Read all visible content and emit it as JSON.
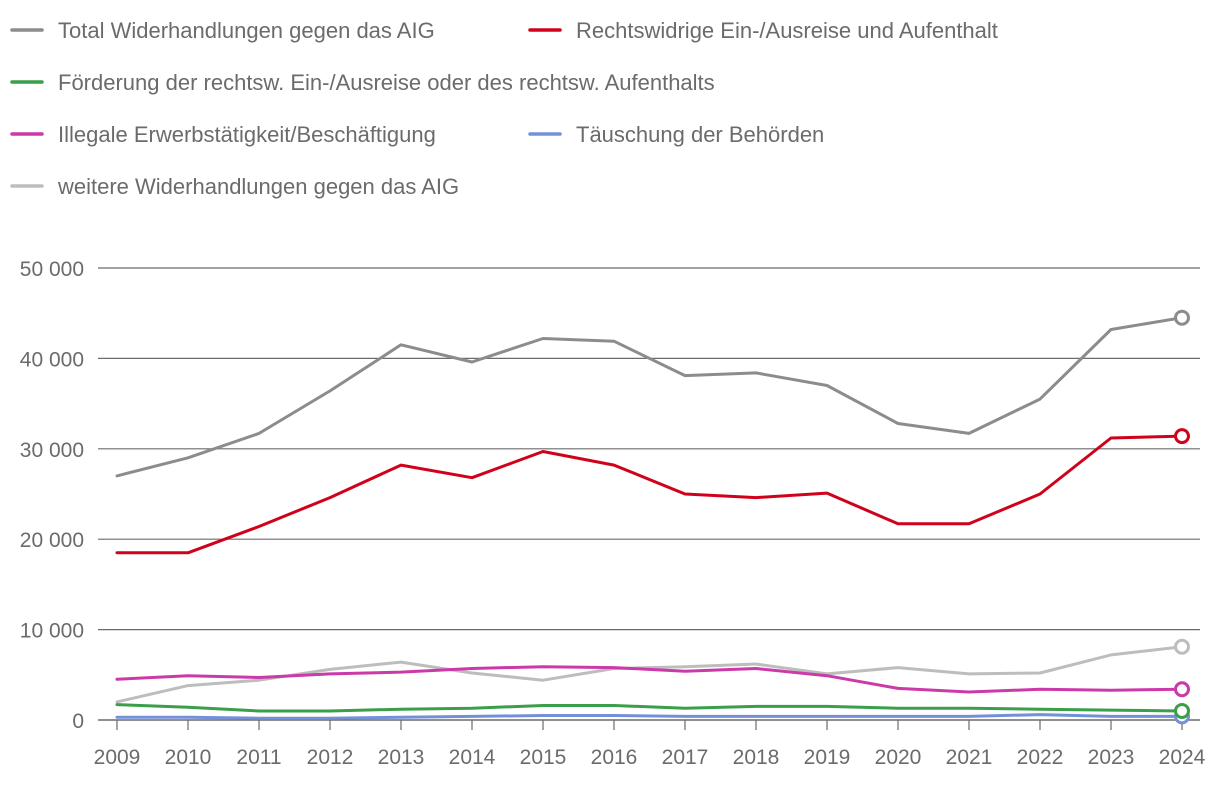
{
  "chart_data": {
    "type": "line",
    "title": "",
    "xlabel": "",
    "ylabel": "",
    "x": [
      "2009",
      "2010",
      "2011",
      "2012",
      "2013",
      "2014",
      "2015",
      "2016",
      "2017",
      "2018",
      "2019",
      "2020",
      "2021",
      "2022",
      "2023",
      "2024"
    ],
    "ylim": [
      0,
      50000
    ],
    "yticks": [
      0,
      10000,
      20000,
      30000,
      40000,
      50000
    ],
    "ytick_labels": [
      "0",
      "10 000",
      "20 000",
      "30 000",
      "40 000",
      "50 000"
    ],
    "grid": true,
    "legend_position": "top-left",
    "series": [
      {
        "name": "Total Widerhandlungen gegen das AIG",
        "color": "#8c8c8c",
        "values": [
          27000,
          29000,
          31700,
          36400,
          41500,
          39600,
          42200,
          41900,
          38100,
          38400,
          37000,
          32800,
          31700,
          35500,
          43200,
          44500
        ]
      },
      {
        "name": "Rechtswidrige Ein-/Ausreise und Aufenthalt",
        "color": "#d0021b",
        "values": [
          18500,
          18500,
          21400,
          24600,
          28200,
          26800,
          29700,
          28200,
          25000,
          24600,
          25100,
          21700,
          21700,
          25000,
          31200,
          31400
        ]
      },
      {
        "name": "Förderung der rechtsw. Ein-/Ausreise oder des rechtsw. Aufenthalts",
        "color": "#3a9e4a",
        "values": [
          1700,
          1400,
          1000,
          1000,
          1200,
          1300,
          1600,
          1600,
          1300,
          1500,
          1500,
          1300,
          1300,
          1200,
          1100,
          1000
        ]
      },
      {
        "name": "Illegale Erwerbstätigkeit/Beschäftigung",
        "color": "#cc3aaa",
        "values": [
          4500,
          4900,
          4700,
          5100,
          5300,
          5700,
          5900,
          5800,
          5400,
          5700,
          4900,
          3500,
          3100,
          3400,
          3300,
          3400
        ]
      },
      {
        "name": "Täuschung der Behörden",
        "color": "#7390d8",
        "values": [
          300,
          300,
          200,
          200,
          300,
          400,
          500,
          500,
          400,
          400,
          400,
          400,
          400,
          600,
          400,
          400
        ]
      },
      {
        "name": "weitere Widerhandlungen gegen das AIG",
        "color": "#bdbdbd",
        "values": [
          2000,
          3800,
          4400,
          5600,
          6400,
          5200,
          4400,
          5700,
          5900,
          6200,
          5100,
          5800,
          5100,
          5200,
          7200,
          8100
        ]
      }
    ]
  },
  "colors": {
    "grid": "#6b6b6b",
    "text": "#6b6b6b",
    "background": "#ffffff"
  }
}
